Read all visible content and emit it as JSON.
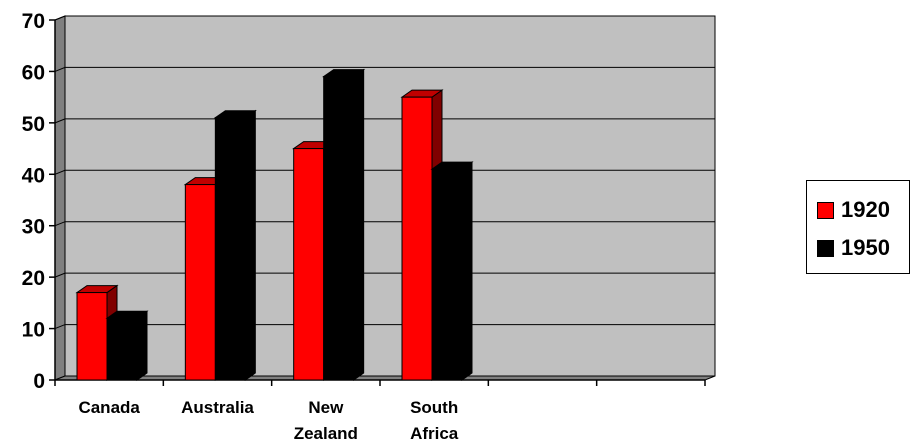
{
  "chart_data": {
    "type": "bar",
    "categories": [
      "Canada",
      "Australia",
      "New Zealand",
      "South Africa",
      "",
      ""
    ],
    "category_label_lines": [
      [
        "Canada"
      ],
      [
        "Australia"
      ],
      [
        "New",
        "Zealand"
      ],
      [
        "South",
        "Africa"
      ],
      [],
      []
    ],
    "series": [
      {
        "name": "1920",
        "values": [
          17,
          38,
          45,
          55,
          null,
          null
        ],
        "color": "#ff0000",
        "side_color": "#800000",
        "top_color": "#c00000"
      },
      {
        "name": "1950",
        "values": [
          12,
          51,
          59,
          41,
          null,
          null
        ],
        "color": "#000000",
        "side_color": "#000000",
        "top_color": "#000000"
      }
    ],
    "ylim": [
      0,
      70
    ],
    "yticks": [
      0,
      10,
      20,
      30,
      40,
      50,
      60,
      70
    ],
    "grid": true,
    "legend_position": "right",
    "plot_background": "#c0c0c0",
    "wall_side_color": "#808080",
    "floor_color": "#808080"
  }
}
